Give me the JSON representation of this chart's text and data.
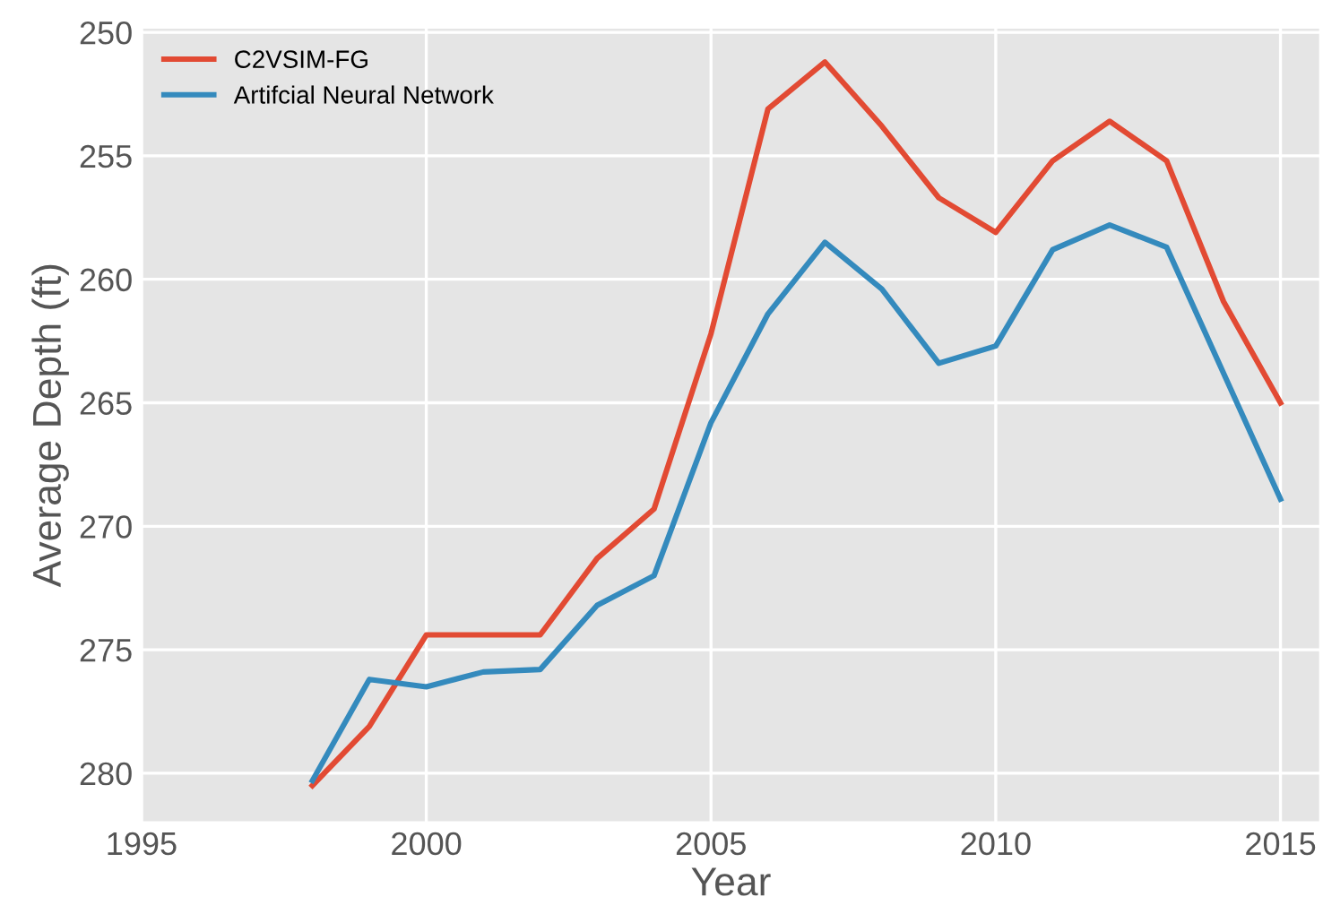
{
  "chart_data": {
    "type": "line",
    "xlabel": "Year",
    "ylabel": "Average Depth (ft)",
    "x": [
      1998,
      1999,
      2000,
      2001,
      2002,
      2003,
      2004,
      2005,
      2006,
      2007,
      2008,
      2009,
      2010,
      2011,
      2012,
      2013,
      2014,
      2015
    ],
    "series": [
      {
        "name": "C2VSIM-FG",
        "color": "#e24a33",
        "values": [
          280.5,
          278.1,
          274.4,
          274.4,
          274.4,
          271.3,
          269.3,
          262.2,
          253.1,
          251.2,
          253.8,
          256.7,
          258.1,
          255.2,
          253.6,
          255.2,
          260.9,
          265.0
        ]
      },
      {
        "name": "Artifcial Neural Network",
        "color": "#348abd",
        "values": [
          280.3,
          276.2,
          276.5,
          275.9,
          275.8,
          273.2,
          272.0,
          265.8,
          261.4,
          258.5,
          260.4,
          263.4,
          262.7,
          258.8,
          257.8,
          258.7,
          263.8,
          268.9
        ]
      }
    ],
    "xlim": [
      1995,
      2015.7
    ],
    "xticks": [
      1995,
      2000,
      2005,
      2010,
      2015
    ],
    "ylim": [
      282,
      249.8
    ],
    "yticks": [
      250,
      255,
      260,
      265,
      270,
      275,
      280
    ],
    "grid": true,
    "legend": "top left",
    "marker": "none",
    "line_style": "solid"
  }
}
